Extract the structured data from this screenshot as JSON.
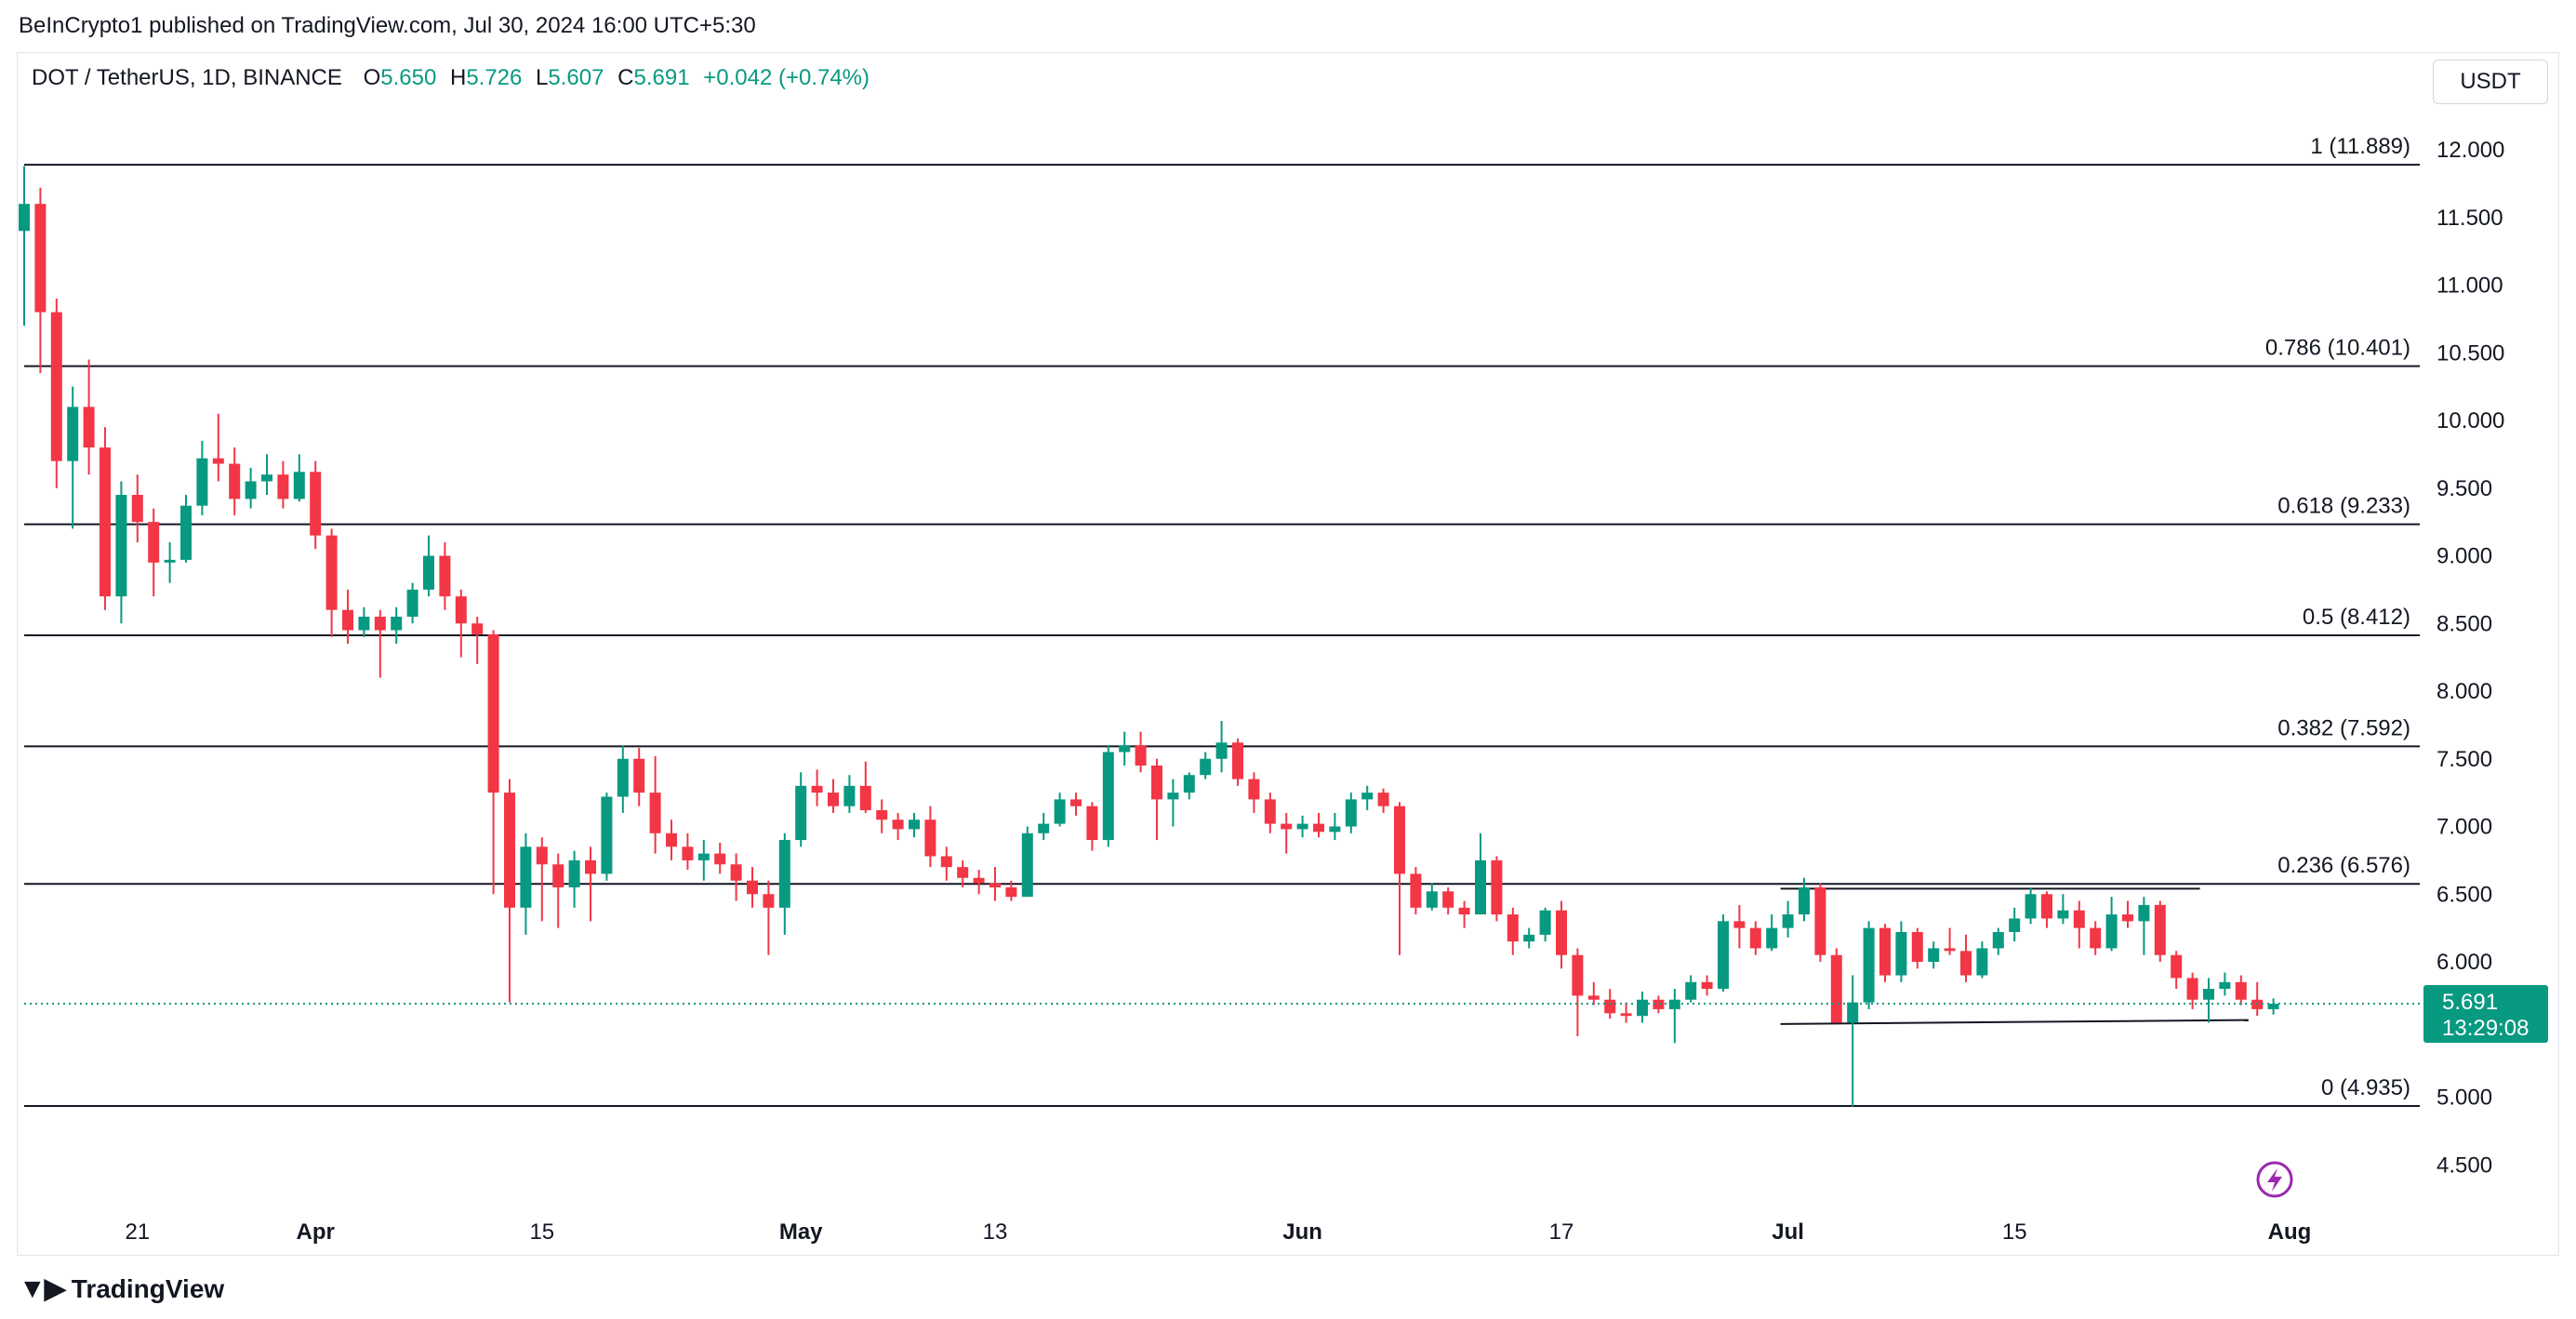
{
  "publisher_line": "BeInCrypto1 published on TradingView.com, Jul 30, 2024 16:00 UTC+5:30",
  "legend": {
    "symbol": "DOT / TetherUS, 1D, BINANCE",
    "o_label": "O",
    "o_value": "5.650",
    "h_label": "H",
    "h_value": "5.726",
    "l_label": "L",
    "l_value": "5.607",
    "c_label": "C",
    "c_value": "5.691",
    "change": "+0.042 (+0.74%)"
  },
  "unit_button": "USDT",
  "footer": {
    "brand": "TradingView"
  },
  "colors": {
    "up": "#089981",
    "down": "#F23645",
    "last_price": "#089981",
    "fib_line": "#131722",
    "alert_icon": "#9C27B0"
  },
  "chart_data": {
    "type": "candlestick",
    "title": "DOT / TetherUS, 1D, BINANCE",
    "y_axis": {
      "min": 4.2,
      "max": 12.2,
      "ticks": [
        "12.000",
        "11.500",
        "11.000",
        "10.500",
        "10.000",
        "9.500",
        "9.000",
        "8.500",
        "8.000",
        "7.500",
        "7.000",
        "6.500",
        "6.000",
        "5.500",
        "5.000",
        "4.500"
      ],
      "position": "right"
    },
    "x_axis": {
      "start_date": "2024-03-14",
      "end_date": "2024-08-01",
      "ticks": [
        {
          "label": "21",
          "date": "2024-03-21"
        },
        {
          "label": "Apr",
          "date": "2024-04-01"
        },
        {
          "label": "15",
          "date": "2024-04-15"
        },
        {
          "label": "May",
          "date": "2024-05-01"
        },
        {
          "label": "13",
          "date": "2024-05-13"
        },
        {
          "label": "Jun",
          "date": "2024-06-01"
        },
        {
          "label": "17",
          "date": "2024-06-17"
        },
        {
          "label": "Jul",
          "date": "2024-07-01"
        },
        {
          "label": "15",
          "date": "2024-07-15"
        },
        {
          "label": "Aug",
          "date": "2024-08-01"
        }
      ]
    },
    "fib_levels": [
      {
        "label": "1 (11.889)",
        "value": 11.889
      },
      {
        "label": "0.786 (10.401)",
        "value": 10.401
      },
      {
        "label": "0.618 (9.233)",
        "value": 9.233
      },
      {
        "label": "0.5 (8.412)",
        "value": 8.412
      },
      {
        "label": "0.382 (7.592)",
        "value": 7.592
      },
      {
        "label": "0.236 (6.576)",
        "value": 6.576
      },
      {
        "label": "0 (4.935)",
        "value": 4.935
      }
    ],
    "trend_lines": [
      {
        "from_date": "2024-07-01",
        "to_date": "2024-07-26",
        "from_value": 6.54,
        "to_value": 6.54
      },
      {
        "from_date": "2024-07-01",
        "to_date": "2024-07-29",
        "from_value": 5.54,
        "to_value": 5.57
      }
    ],
    "last_price": {
      "value": 5.691,
      "label": "5.691",
      "countdown": "13:29:08"
    },
    "candles": [
      {
        "date": "2024-03-14",
        "o": 11.4,
        "h": 11.88,
        "l": 10.7,
        "c": 11.6
      },
      {
        "date": "2024-03-15",
        "o": 11.6,
        "h": 11.72,
        "l": 10.35,
        "c": 10.8
      },
      {
        "date": "2024-03-16",
        "o": 10.8,
        "h": 10.9,
        "l": 9.5,
        "c": 9.7
      },
      {
        "date": "2024-03-17",
        "o": 9.7,
        "h": 10.25,
        "l": 9.2,
        "c": 10.1
      },
      {
        "date": "2024-03-18",
        "o": 10.1,
        "h": 10.45,
        "l": 9.6,
        "c": 9.8
      },
      {
        "date": "2024-03-19",
        "o": 9.8,
        "h": 9.95,
        "l": 8.6,
        "c": 8.7
      },
      {
        "date": "2024-03-20",
        "o": 8.7,
        "h": 9.55,
        "l": 8.5,
        "c": 9.45
      },
      {
        "date": "2024-03-21",
        "o": 9.45,
        "h": 9.6,
        "l": 9.1,
        "c": 9.25
      },
      {
        "date": "2024-03-22",
        "o": 9.25,
        "h": 9.35,
        "l": 8.7,
        "c": 8.95
      },
      {
        "date": "2024-03-23",
        "o": 8.95,
        "h": 9.1,
        "l": 8.8,
        "c": 8.97
      },
      {
        "date": "2024-03-24",
        "o": 8.97,
        "h": 9.45,
        "l": 8.95,
        "c": 9.37
      },
      {
        "date": "2024-03-25",
        "o": 9.37,
        "h": 9.85,
        "l": 9.3,
        "c": 9.72
      },
      {
        "date": "2024-03-26",
        "o": 9.72,
        "h": 10.05,
        "l": 9.55,
        "c": 9.68
      },
      {
        "date": "2024-03-27",
        "o": 9.68,
        "h": 9.8,
        "l": 9.3,
        "c": 9.42
      },
      {
        "date": "2024-03-28",
        "o": 9.42,
        "h": 9.65,
        "l": 9.35,
        "c": 9.55
      },
      {
        "date": "2024-03-29",
        "o": 9.55,
        "h": 9.75,
        "l": 9.45,
        "c": 9.6
      },
      {
        "date": "2024-03-30",
        "o": 9.6,
        "h": 9.7,
        "l": 9.35,
        "c": 9.42
      },
      {
        "date": "2024-03-31",
        "o": 9.42,
        "h": 9.75,
        "l": 9.4,
        "c": 9.62
      },
      {
        "date": "2024-04-01",
        "o": 9.62,
        "h": 9.7,
        "l": 9.05,
        "c": 9.15
      },
      {
        "date": "2024-04-02",
        "o": 9.15,
        "h": 9.2,
        "l": 8.4,
        "c": 8.6
      },
      {
        "date": "2024-04-03",
        "o": 8.6,
        "h": 8.75,
        "l": 8.35,
        "c": 8.45
      },
      {
        "date": "2024-04-04",
        "o": 8.45,
        "h": 8.62,
        "l": 8.4,
        "c": 8.55
      },
      {
        "date": "2024-04-05",
        "o": 8.55,
        "h": 8.6,
        "l": 8.1,
        "c": 8.45
      },
      {
        "date": "2024-04-06",
        "o": 8.45,
        "h": 8.62,
        "l": 8.35,
        "c": 8.55
      },
      {
        "date": "2024-04-07",
        "o": 8.55,
        "h": 8.8,
        "l": 8.5,
        "c": 8.75
      },
      {
        "date": "2024-04-08",
        "o": 8.75,
        "h": 9.15,
        "l": 8.7,
        "c": 9.0
      },
      {
        "date": "2024-04-09",
        "o": 9.0,
        "h": 9.1,
        "l": 8.6,
        "c": 8.7
      },
      {
        "date": "2024-04-10",
        "o": 8.7,
        "h": 8.75,
        "l": 8.25,
        "c": 8.5
      },
      {
        "date": "2024-04-11",
        "o": 8.5,
        "h": 8.55,
        "l": 8.2,
        "c": 8.42
      },
      {
        "date": "2024-04-12",
        "o": 8.42,
        "h": 8.45,
        "l": 6.5,
        "c": 7.25
      },
      {
        "date": "2024-04-13",
        "o": 7.25,
        "h": 7.35,
        "l": 5.7,
        "c": 6.4
      },
      {
        "date": "2024-04-14",
        "o": 6.4,
        "h": 6.95,
        "l": 6.2,
        "c": 6.85
      },
      {
        "date": "2024-04-15",
        "o": 6.85,
        "h": 6.92,
        "l": 6.3,
        "c": 6.72
      },
      {
        "date": "2024-04-16",
        "o": 6.72,
        "h": 6.8,
        "l": 6.25,
        "c": 6.55
      },
      {
        "date": "2024-04-17",
        "o": 6.55,
        "h": 6.82,
        "l": 6.4,
        "c": 6.75
      },
      {
        "date": "2024-04-18",
        "o": 6.75,
        "h": 6.85,
        "l": 6.3,
        "c": 6.65
      },
      {
        "date": "2024-04-19",
        "o": 6.65,
        "h": 7.25,
        "l": 6.6,
        "c": 7.22
      },
      {
        "date": "2024-04-20",
        "o": 7.22,
        "h": 7.6,
        "l": 7.1,
        "c": 7.5
      },
      {
        "date": "2024-04-21",
        "o": 7.5,
        "h": 7.58,
        "l": 7.15,
        "c": 7.25
      },
      {
        "date": "2024-04-22",
        "o": 7.25,
        "h": 7.52,
        "l": 6.8,
        "c": 6.95
      },
      {
        "date": "2024-04-23",
        "o": 6.95,
        "h": 7.05,
        "l": 6.75,
        "c": 6.85
      },
      {
        "date": "2024-04-24",
        "o": 6.85,
        "h": 6.95,
        "l": 6.68,
        "c": 6.75
      },
      {
        "date": "2024-04-25",
        "o": 6.75,
        "h": 6.9,
        "l": 6.6,
        "c": 6.8
      },
      {
        "date": "2024-04-26",
        "o": 6.8,
        "h": 6.88,
        "l": 6.65,
        "c": 6.72
      },
      {
        "date": "2024-04-27",
        "o": 6.72,
        "h": 6.8,
        "l": 6.45,
        "c": 6.6
      },
      {
        "date": "2024-04-28",
        "o": 6.6,
        "h": 6.7,
        "l": 6.4,
        "c": 6.5
      },
      {
        "date": "2024-04-29",
        "o": 6.5,
        "h": 6.6,
        "l": 6.05,
        "c": 6.4
      },
      {
        "date": "2024-04-30",
        "o": 6.4,
        "h": 6.95,
        "l": 6.2,
        "c": 6.9
      },
      {
        "date": "2024-05-01",
        "o": 6.9,
        "h": 7.4,
        "l": 6.85,
        "c": 7.3
      },
      {
        "date": "2024-05-02",
        "o": 7.3,
        "h": 7.42,
        "l": 7.15,
        "c": 7.25
      },
      {
        "date": "2024-05-03",
        "o": 7.25,
        "h": 7.35,
        "l": 7.1,
        "c": 7.15
      },
      {
        "date": "2024-05-04",
        "o": 7.15,
        "h": 7.38,
        "l": 7.1,
        "c": 7.3
      },
      {
        "date": "2024-05-05",
        "o": 7.3,
        "h": 7.48,
        "l": 7.1,
        "c": 7.12
      },
      {
        "date": "2024-05-06",
        "o": 7.12,
        "h": 7.2,
        "l": 6.95,
        "c": 7.05
      },
      {
        "date": "2024-05-07",
        "o": 7.05,
        "h": 7.1,
        "l": 6.9,
        "c": 6.98
      },
      {
        "date": "2024-05-08",
        "o": 6.98,
        "h": 7.1,
        "l": 6.92,
        "c": 7.05
      },
      {
        "date": "2024-05-09",
        "o": 7.05,
        "h": 7.15,
        "l": 6.7,
        "c": 6.78
      },
      {
        "date": "2024-05-10",
        "o": 6.78,
        "h": 6.85,
        "l": 6.6,
        "c": 6.7
      },
      {
        "date": "2024-05-11",
        "o": 6.7,
        "h": 6.75,
        "l": 6.55,
        "c": 6.62
      },
      {
        "date": "2024-05-12",
        "o": 6.62,
        "h": 6.68,
        "l": 6.5,
        "c": 6.58
      },
      {
        "date": "2024-05-13",
        "o": 6.58,
        "h": 6.7,
        "l": 6.45,
        "c": 6.55
      },
      {
        "date": "2024-05-14",
        "o": 6.55,
        "h": 6.6,
        "l": 6.45,
        "c": 6.48
      },
      {
        "date": "2024-05-15",
        "o": 6.48,
        "h": 7.0,
        "l": 6.48,
        "c": 6.95
      },
      {
        "date": "2024-05-16",
        "o": 6.95,
        "h": 7.1,
        "l": 6.9,
        "c": 7.02
      },
      {
        "date": "2024-05-17",
        "o": 7.02,
        "h": 7.25,
        "l": 7.0,
        "c": 7.2
      },
      {
        "date": "2024-05-18",
        "o": 7.2,
        "h": 7.25,
        "l": 7.08,
        "c": 7.15
      },
      {
        "date": "2024-05-19",
        "o": 7.15,
        "h": 7.18,
        "l": 6.82,
        "c": 6.9
      },
      {
        "date": "2024-05-20",
        "o": 6.9,
        "h": 7.6,
        "l": 6.85,
        "c": 7.55
      },
      {
        "date": "2024-05-21",
        "o": 7.55,
        "h": 7.7,
        "l": 7.45,
        "c": 7.6
      },
      {
        "date": "2024-05-22",
        "o": 7.6,
        "h": 7.7,
        "l": 7.4,
        "c": 7.45
      },
      {
        "date": "2024-05-23",
        "o": 7.45,
        "h": 7.5,
        "l": 6.9,
        "c": 7.2
      },
      {
        "date": "2024-05-24",
        "o": 7.2,
        "h": 7.35,
        "l": 7.0,
        "c": 7.25
      },
      {
        "date": "2024-05-25",
        "o": 7.25,
        "h": 7.4,
        "l": 7.2,
        "c": 7.38
      },
      {
        "date": "2024-05-26",
        "o": 7.38,
        "h": 7.55,
        "l": 7.35,
        "c": 7.5
      },
      {
        "date": "2024-05-27",
        "o": 7.5,
        "h": 7.78,
        "l": 7.4,
        "c": 7.62
      },
      {
        "date": "2024-05-28",
        "o": 7.62,
        "h": 7.65,
        "l": 7.3,
        "c": 7.35
      },
      {
        "date": "2024-05-29",
        "o": 7.35,
        "h": 7.4,
        "l": 7.1,
        "c": 7.2
      },
      {
        "date": "2024-05-30",
        "o": 7.2,
        "h": 7.25,
        "l": 6.95,
        "c": 7.02
      },
      {
        "date": "2024-05-31",
        "o": 7.02,
        "h": 7.1,
        "l": 6.8,
        "c": 6.98
      },
      {
        "date": "2024-06-01",
        "o": 6.98,
        "h": 7.08,
        "l": 6.92,
        "c": 7.02
      },
      {
        "date": "2024-06-02",
        "o": 7.02,
        "h": 7.1,
        "l": 6.92,
        "c": 6.96
      },
      {
        "date": "2024-06-03",
        "o": 6.96,
        "h": 7.1,
        "l": 6.9,
        "c": 7.0
      },
      {
        "date": "2024-06-04",
        "o": 7.0,
        "h": 7.25,
        "l": 6.95,
        "c": 7.2
      },
      {
        "date": "2024-06-05",
        "o": 7.2,
        "h": 7.3,
        "l": 7.12,
        "c": 7.25
      },
      {
        "date": "2024-06-06",
        "o": 7.25,
        "h": 7.28,
        "l": 7.1,
        "c": 7.15
      },
      {
        "date": "2024-06-07",
        "o": 7.15,
        "h": 7.18,
        "l": 6.05,
        "c": 6.65
      },
      {
        "date": "2024-06-08",
        "o": 6.65,
        "h": 6.7,
        "l": 6.35,
        "c": 6.4
      },
      {
        "date": "2024-06-09",
        "o": 6.4,
        "h": 6.58,
        "l": 6.38,
        "c": 6.52
      },
      {
        "date": "2024-06-10",
        "o": 6.52,
        "h": 6.55,
        "l": 6.35,
        "c": 6.4
      },
      {
        "date": "2024-06-11",
        "o": 6.4,
        "h": 6.45,
        "l": 6.25,
        "c": 6.35
      },
      {
        "date": "2024-06-12",
        "o": 6.35,
        "h": 6.95,
        "l": 6.35,
        "c": 6.75
      },
      {
        "date": "2024-06-13",
        "o": 6.75,
        "h": 6.78,
        "l": 6.3,
        "c": 6.35
      },
      {
        "date": "2024-06-14",
        "o": 6.35,
        "h": 6.4,
        "l": 6.05,
        "c": 6.15
      },
      {
        "date": "2024-06-15",
        "o": 6.15,
        "h": 6.25,
        "l": 6.1,
        "c": 6.2
      },
      {
        "date": "2024-06-16",
        "o": 6.2,
        "h": 6.4,
        "l": 6.15,
        "c": 6.38
      },
      {
        "date": "2024-06-17",
        "o": 6.38,
        "h": 6.45,
        "l": 5.95,
        "c": 6.05
      },
      {
        "date": "2024-06-18",
        "o": 6.05,
        "h": 6.1,
        "l": 5.45,
        "c": 5.75
      },
      {
        "date": "2024-06-19",
        "o": 5.75,
        "h": 5.85,
        "l": 5.68,
        "c": 5.72
      },
      {
        "date": "2024-06-20",
        "o": 5.72,
        "h": 5.8,
        "l": 5.58,
        "c": 5.62
      },
      {
        "date": "2024-06-21",
        "o": 5.62,
        "h": 5.7,
        "l": 5.55,
        "c": 5.6
      },
      {
        "date": "2024-06-22",
        "o": 5.6,
        "h": 5.78,
        "l": 5.55,
        "c": 5.72
      },
      {
        "date": "2024-06-23",
        "o": 5.72,
        "h": 5.75,
        "l": 5.62,
        "c": 5.65
      },
      {
        "date": "2024-06-24",
        "o": 5.65,
        "h": 5.8,
        "l": 5.4,
        "c": 5.72
      },
      {
        "date": "2024-06-25",
        "o": 5.72,
        "h": 5.9,
        "l": 5.7,
        "c": 5.85
      },
      {
        "date": "2024-06-26",
        "o": 5.85,
        "h": 5.9,
        "l": 5.75,
        "c": 5.8
      },
      {
        "date": "2024-06-27",
        "o": 5.8,
        "h": 6.35,
        "l": 5.78,
        "c": 6.3
      },
      {
        "date": "2024-06-28",
        "o": 6.3,
        "h": 6.42,
        "l": 6.1,
        "c": 6.25
      },
      {
        "date": "2024-06-29",
        "o": 6.25,
        "h": 6.3,
        "l": 6.05,
        "c": 6.1
      },
      {
        "date": "2024-06-30",
        "o": 6.1,
        "h": 6.35,
        "l": 6.08,
        "c": 6.25
      },
      {
        "date": "2024-07-01",
        "o": 6.25,
        "h": 6.45,
        "l": 6.18,
        "c": 6.35
      },
      {
        "date": "2024-07-02",
        "o": 6.35,
        "h": 6.62,
        "l": 6.3,
        "c": 6.55
      },
      {
        "date": "2024-07-03",
        "o": 6.55,
        "h": 6.58,
        "l": 6.0,
        "c": 6.05
      },
      {
        "date": "2024-07-04",
        "o": 6.05,
        "h": 6.1,
        "l": 5.55,
        "c": 5.55
      },
      {
        "date": "2024-07-05",
        "o": 5.55,
        "h": 5.9,
        "l": 4.93,
        "c": 5.7
      },
      {
        "date": "2024-07-06",
        "o": 5.7,
        "h": 6.3,
        "l": 5.65,
        "c": 6.25
      },
      {
        "date": "2024-07-07",
        "o": 6.25,
        "h": 6.28,
        "l": 5.85,
        "c": 5.9
      },
      {
        "date": "2024-07-08",
        "o": 5.9,
        "h": 6.3,
        "l": 5.85,
        "c": 6.22
      },
      {
        "date": "2024-07-09",
        "o": 6.22,
        "h": 6.25,
        "l": 5.95,
        "c": 6.0
      },
      {
        "date": "2024-07-10",
        "o": 6.0,
        "h": 6.15,
        "l": 5.95,
        "c": 6.1
      },
      {
        "date": "2024-07-11",
        "o": 6.1,
        "h": 6.25,
        "l": 6.05,
        "c": 6.08
      },
      {
        "date": "2024-07-12",
        "o": 6.08,
        "h": 6.2,
        "l": 5.85,
        "c": 5.9
      },
      {
        "date": "2024-07-13",
        "o": 5.9,
        "h": 6.15,
        "l": 5.88,
        "c": 6.1
      },
      {
        "date": "2024-07-14",
        "o": 6.1,
        "h": 6.25,
        "l": 6.05,
        "c": 6.22
      },
      {
        "date": "2024-07-15",
        "o": 6.22,
        "h": 6.4,
        "l": 6.15,
        "c": 6.32
      },
      {
        "date": "2024-07-16",
        "o": 6.32,
        "h": 6.55,
        "l": 6.28,
        "c": 6.5
      },
      {
        "date": "2024-07-17",
        "o": 6.5,
        "h": 6.52,
        "l": 6.25,
        "c": 6.32
      },
      {
        "date": "2024-07-18",
        "o": 6.32,
        "h": 6.5,
        "l": 6.28,
        "c": 6.38
      },
      {
        "date": "2024-07-19",
        "o": 6.38,
        "h": 6.45,
        "l": 6.1,
        "c": 6.25
      },
      {
        "date": "2024-07-20",
        "o": 6.25,
        "h": 6.3,
        "l": 6.05,
        "c": 6.1
      },
      {
        "date": "2024-07-21",
        "o": 6.1,
        "h": 6.48,
        "l": 6.08,
        "c": 6.35
      },
      {
        "date": "2024-07-22",
        "o": 6.35,
        "h": 6.45,
        "l": 6.25,
        "c": 6.3
      },
      {
        "date": "2024-07-23",
        "o": 6.3,
        "h": 6.48,
        "l": 6.05,
        "c": 6.42
      },
      {
        "date": "2024-07-24",
        "o": 6.42,
        "h": 6.45,
        "l": 6.0,
        "c": 6.05
      },
      {
        "date": "2024-07-25",
        "o": 6.05,
        "h": 6.08,
        "l": 5.8,
        "c": 5.88
      },
      {
        "date": "2024-07-26",
        "o": 5.88,
        "h": 5.92,
        "l": 5.65,
        "c": 5.72
      },
      {
        "date": "2024-07-27",
        "o": 5.72,
        "h": 5.88,
        "l": 5.55,
        "c": 5.8
      },
      {
        "date": "2024-07-28",
        "o": 5.8,
        "h": 5.92,
        "l": 5.75,
        "c": 5.85
      },
      {
        "date": "2024-07-29",
        "o": 5.85,
        "h": 5.9,
        "l": 5.68,
        "c": 5.72
      },
      {
        "date": "2024-07-30",
        "o": 5.72,
        "h": 5.85,
        "l": 5.6,
        "c": 5.65
      },
      {
        "date": "2024-07-31",
        "o": 5.65,
        "h": 5.73,
        "l": 5.61,
        "c": 5.69
      }
    ]
  }
}
